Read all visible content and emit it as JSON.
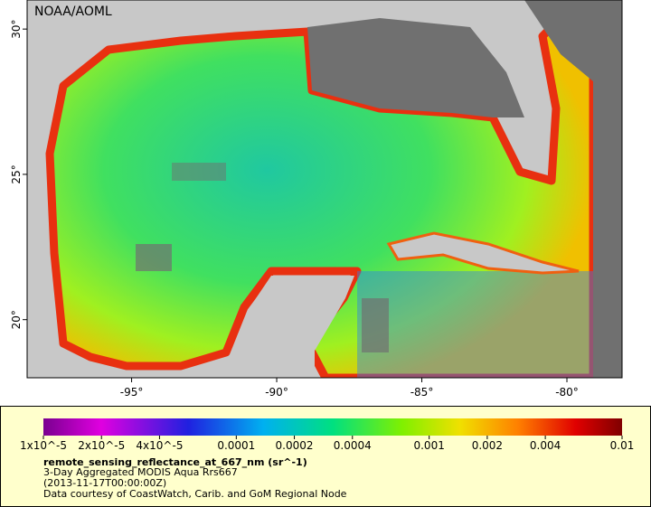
{
  "map": {
    "credit": "NOAA/AOML",
    "xlim": [
      -98.6,
      -78.1
    ],
    "ylim": [
      18,
      31
    ],
    "xticks": [
      {
        "value": -95,
        "label": "-95°"
      },
      {
        "value": -90,
        "label": "-90°"
      },
      {
        "value": -85,
        "label": "-85°"
      },
      {
        "value": -80,
        "label": "-80°"
      }
    ],
    "yticks": [
      {
        "value": 20,
        "label": "20°"
      },
      {
        "value": 25,
        "label": "25°"
      },
      {
        "value": 30,
        "label": "30°"
      }
    ]
  },
  "colorbar": {
    "lim": [
      1e-05,
      0.01
    ],
    "log": true,
    "ticks": [
      {
        "value": 1e-05,
        "label": "1x10^-5"
      },
      {
        "value": 2e-05,
        "label": "2x10^-5"
      },
      {
        "value": 4e-05,
        "label": "4x10^-5"
      },
      0.0001,
      0.0002,
      0.0004,
      0.001,
      0.002,
      0.004,
      0.01
    ]
  },
  "caption": {
    "variable": "remote_sensing_reflectance_at_667_nm (sr^-1)",
    "lines": [
      "3-Day Aggregated MODIS Aqua Rrs667",
      "(2013-11-17T00:00:00Z)",
      "Data courtesy of CoastWatch, Carib. and GoM Regional Node"
    ]
  }
}
